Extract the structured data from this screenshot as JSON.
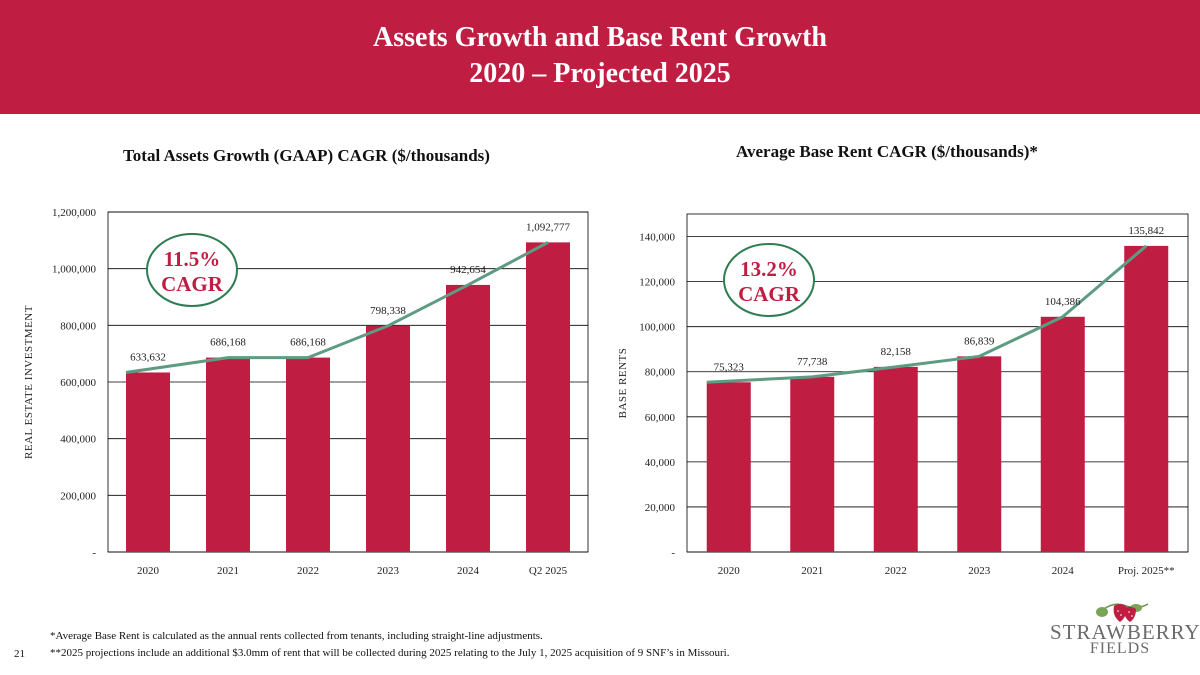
{
  "header": {
    "title_line1": "Assets Growth and Base Rent Growth",
    "title_line2": "2020 – Projected 2025"
  },
  "colors": {
    "banner": "#BF1E42",
    "bar": "#BF1E42",
    "line": "#5E9B83",
    "cagr_text": "#BF1E42",
    "cagr_ring": "#2E7D52"
  },
  "chart_data": [
    {
      "type": "bar",
      "title": "Total Assets Growth (GAAP) CAGR ($/thousands)",
      "ylabel": "REAL ESTATE INVESTMENT",
      "xlabel": "",
      "categories": [
        "2020",
        "2021",
        "2022",
        "2023",
        "2024",
        "Q2 2025"
      ],
      "values": [
        633632,
        686168,
        686168,
        798338,
        942654,
        1092777
      ],
      "value_labels": [
        "633,632",
        "686,168",
        "686,168",
        "798,338",
        "942,654",
        "1,092,777"
      ],
      "ylim": [
        0,
        1200000
      ],
      "yticks": [
        0,
        200000,
        400000,
        600000,
        800000,
        1000000,
        1200000
      ],
      "ytick_labels": [
        "-",
        "200,000",
        "400,000",
        "600,000",
        "800,000",
        "1,000,000",
        "1,200,000"
      ],
      "trend_line": true,
      "cagr_pct": "11.5%",
      "cagr_word": "CAGR",
      "grid": true
    },
    {
      "type": "bar",
      "title": "Average Base Rent CAGR ($/thousands)*",
      "ylabel": "BASE RENTS",
      "xlabel": "",
      "categories": [
        "2020",
        "2021",
        "2022",
        "2023",
        "2024",
        "Proj. 2025**"
      ],
      "values": [
        75323,
        77738,
        82158,
        86839,
        104386,
        135842
      ],
      "value_labels": [
        "75,323",
        "77,738",
        "82,158",
        "86,839",
        "104,386",
        "135,842"
      ],
      "ylim": [
        0,
        150000
      ],
      "yticks": [
        0,
        20000,
        40000,
        60000,
        80000,
        100000,
        120000,
        140000
      ],
      "ytick_labels": [
        "-",
        "20,000",
        "40,000",
        "60,000",
        "80,000",
        "100,000",
        "120,000",
        "140,000"
      ],
      "trend_line": true,
      "cagr_pct": "13.2%",
      "cagr_word": "CAGR",
      "grid": true
    }
  ],
  "footnotes": {
    "note1": "*Average Base Rent is calculated as the annual rents collected from tenants, including straight-line adjustments.",
    "note2": "**2025 projections include an additional $3.0mm of rent that will be collected during 2025 relating to the July 1, 2025 acquisition of 9 SNF’s in Missouri."
  },
  "page_number": "21",
  "logo": {
    "line1": "STRAWBERRY",
    "line2": "FIELDS",
    "icon": "strawberry-icon"
  }
}
